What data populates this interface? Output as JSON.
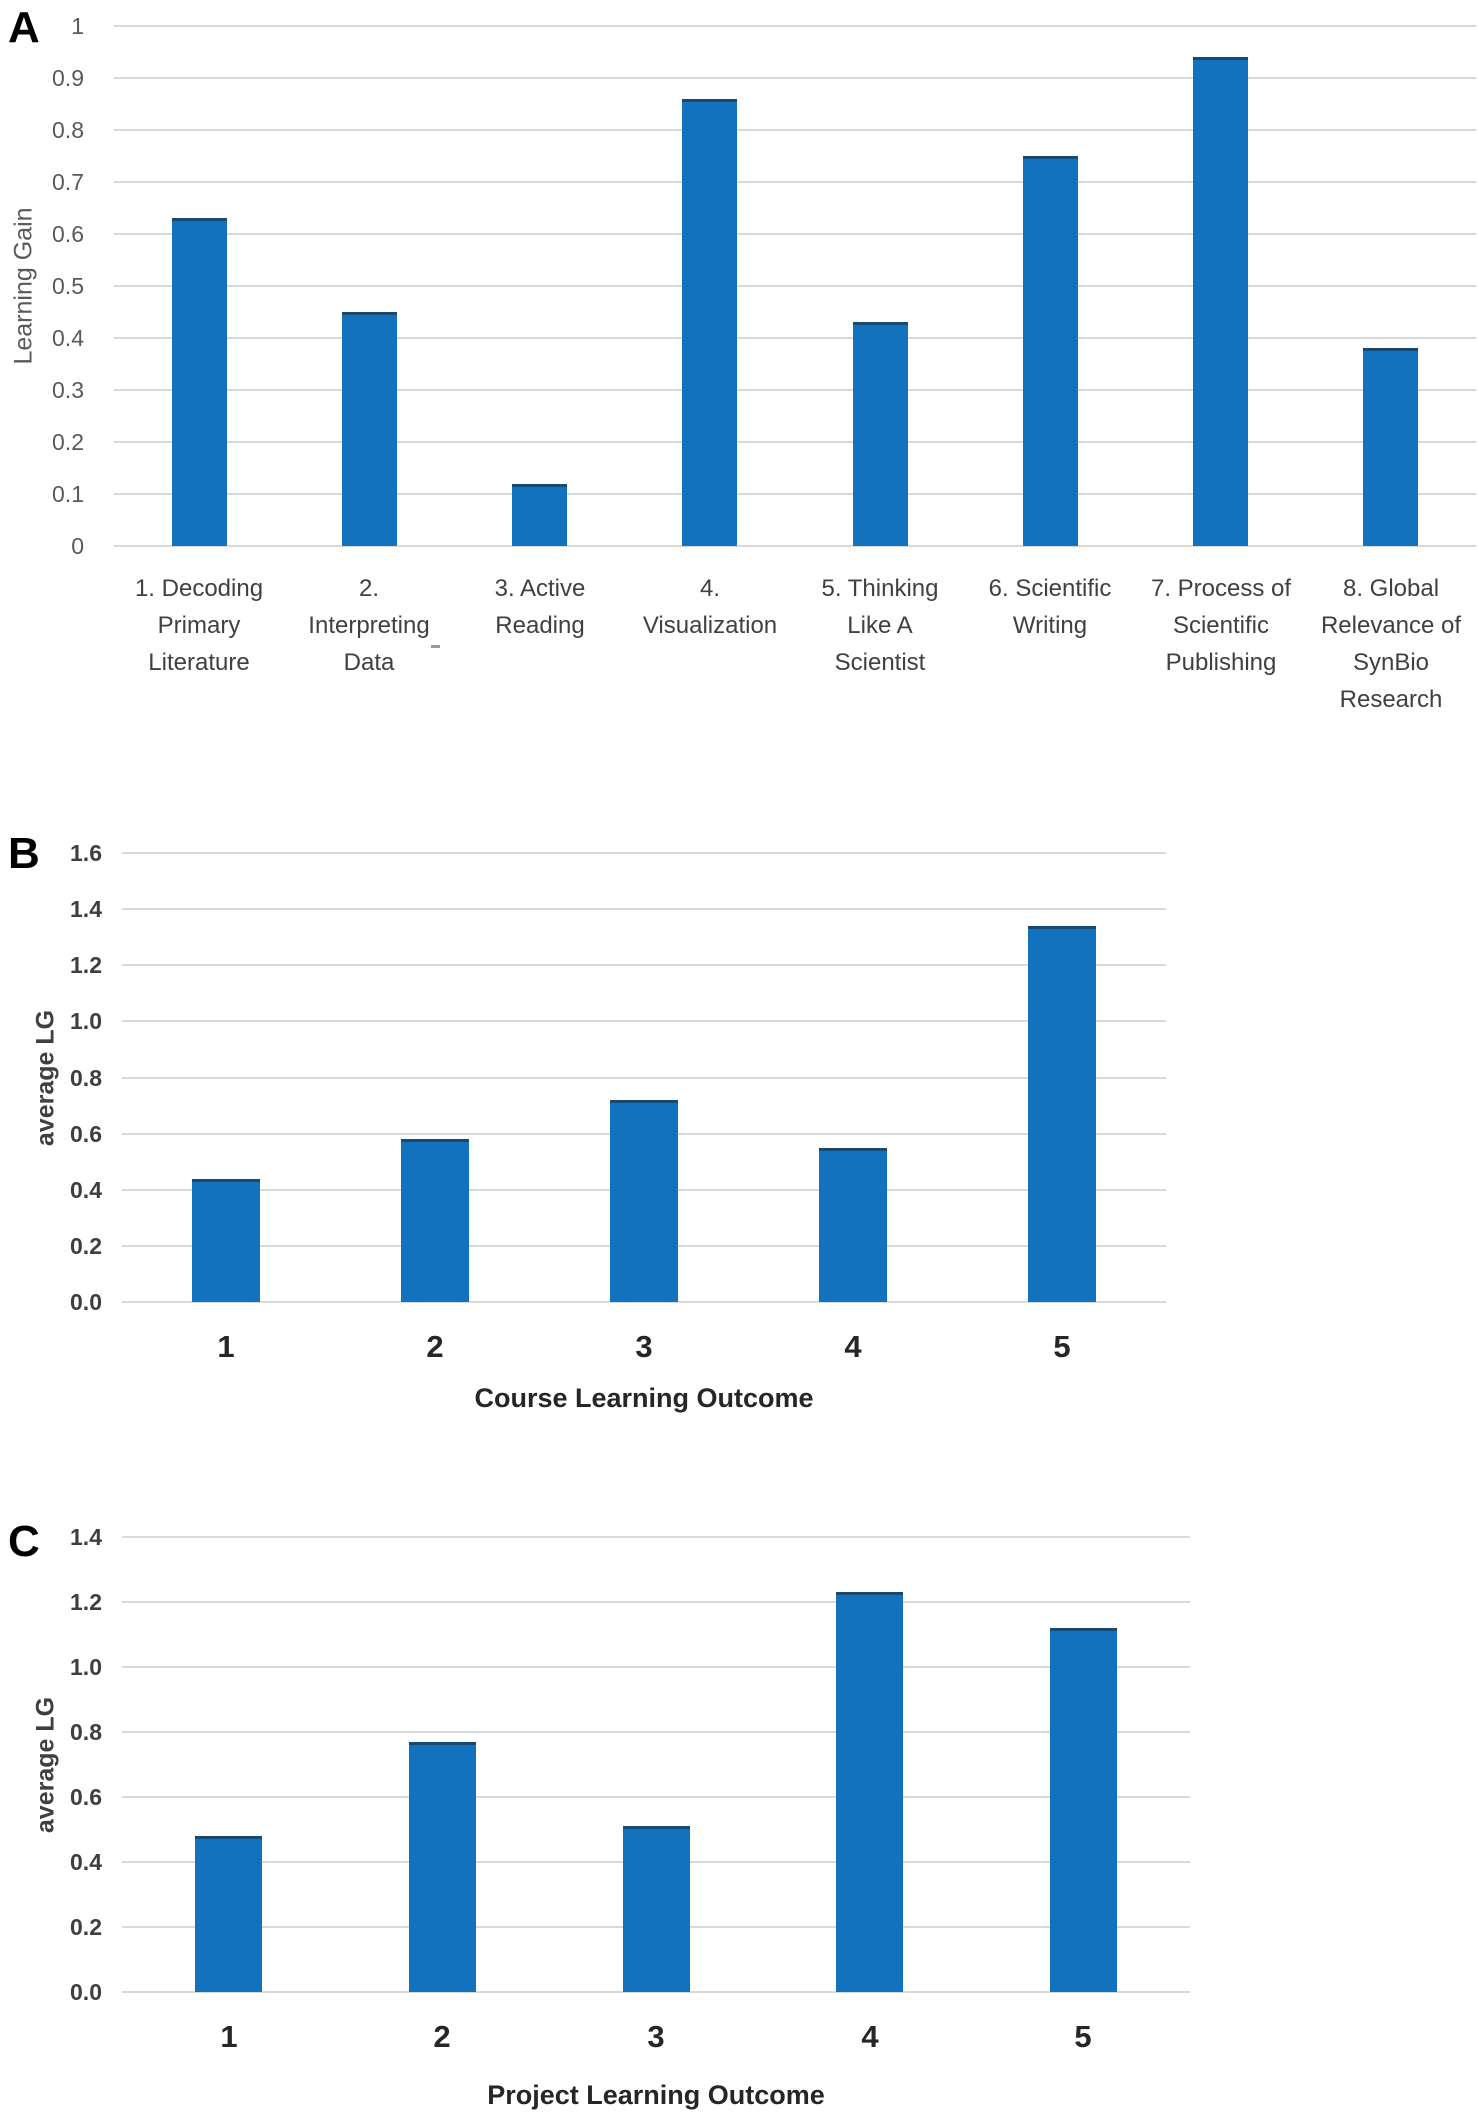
{
  "figure": {
    "panels": [
      {
        "letter": "A",
        "ylabel": "Learning Gain",
        "xlabel": ""
      },
      {
        "letter": "B",
        "ylabel": "average LG",
        "xlabel": "Course Learning Outcome"
      },
      {
        "letter": "C",
        "ylabel": "average LG",
        "xlabel": "Project Learning Outcome"
      }
    ]
  },
  "colors": {
    "bar": "#1272bd",
    "bar_cap": "#174a73",
    "gridline": "#d9d9d9",
    "tick_text_a": "#595959",
    "tick_text_bc": "#3f3f3f",
    "axis_title_text": "#262626",
    "panel_letter": "#000000"
  },
  "chart_data": [
    {
      "type": "bar",
      "panel": "A",
      "title": "",
      "xlabel": "",
      "ylabel": "Learning Gain",
      "ylim": [
        0,
        1
      ],
      "ytick_step": 0.1,
      "grid": true,
      "legend": false,
      "categories": [
        "1. Decoding Primary Literature",
        "2. Interpreting Data",
        "3. Active Reading",
        "4. Visualization",
        "5. Thinking Like A Scientist",
        "6. Scientific Writing",
        "7. Process of Scientific Publishing",
        "8. Global Relevance of SynBio Research"
      ],
      "category_lines": [
        [
          "1. Decoding",
          "Primary",
          "Literature"
        ],
        [
          "2.",
          "Interpreting",
          "Data"
        ],
        [
          "3. Active",
          "Reading"
        ],
        [
          "4.",
          "Visualization"
        ],
        [
          "5. Thinking",
          "Like A",
          "Scientist"
        ],
        [
          "6. Scientific",
          "Writing"
        ],
        [
          "7. Process of",
          "Scientific",
          "Publishing"
        ],
        [
          "8. Global",
          "Relevance of",
          "SynBio",
          "Research"
        ]
      ],
      "values": [
        0.63,
        0.45,
        0.12,
        0.86,
        0.43,
        0.75,
        0.94,
        0.38
      ]
    },
    {
      "type": "bar",
      "panel": "B",
      "title": "",
      "xlabel": "Course Learning Outcome",
      "ylabel": "average LG",
      "ylim": [
        0,
        1.6
      ],
      "ytick_step": 0.2,
      "grid": true,
      "legend": false,
      "categories": [
        "1",
        "2",
        "3",
        "4",
        "5"
      ],
      "values": [
        0.44,
        0.58,
        0.72,
        0.55,
        1.34
      ]
    },
    {
      "type": "bar",
      "panel": "C",
      "title": "",
      "xlabel": "Project Learning Outcome",
      "ylabel": "average LG",
      "ylim": [
        0,
        1.4
      ],
      "ytick_step": 0.2,
      "grid": true,
      "legend": false,
      "categories": [
        "1",
        "2",
        "3",
        "4",
        "5"
      ],
      "values": [
        0.48,
        0.77,
        0.51,
        1.23,
        1.12
      ]
    }
  ]
}
